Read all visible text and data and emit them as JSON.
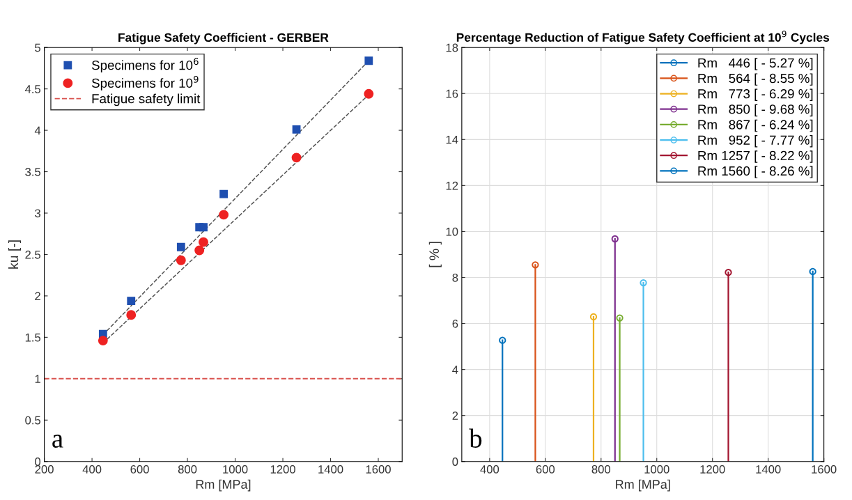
{
  "chart_data": [
    {
      "type": "scatter",
      "title": "Fatigue Safety Coefficient - GERBER",
      "xlabel": "Rm [MPa]",
      "ylabel": "ku [-]",
      "xlim": [
        200,
        1700
      ],
      "xticks": [
        200,
        400,
        600,
        800,
        1000,
        1200,
        1400,
        1600
      ],
      "ylim": [
        0,
        5
      ],
      "yticks": [
        0,
        0.5,
        1,
        1.5,
        2,
        2.5,
        3,
        3.5,
        4,
        4.5,
        5
      ],
      "grid": false,
      "legend": "top left",
      "x": [
        446,
        564,
        773,
        850,
        867,
        952,
        1257,
        1560
      ],
      "series": [
        {
          "name": "Specimens for 10$^{6}$",
          "color": "#1f4fb0",
          "marker": "square",
          "values": [
            1.54,
            1.94,
            2.59,
            2.83,
            2.83,
            3.23,
            4.01,
            4.84
          ]
        },
        {
          "name": "Specimens for 10$^{9}$",
          "color": "#ee2222",
          "marker": "circle",
          "values": [
            1.46,
            1.77,
            2.43,
            2.55,
            2.65,
            2.98,
            3.67,
            4.44
          ]
        },
        {
          "type": "line",
          "color": "#555555",
          "line_style": "dashed",
          "marker": "none",
          "x": [
            446,
            1560
          ],
          "values": [
            1.53,
            4.84
          ]
        },
        {
          "type": "line",
          "color": "#555555",
          "line_style": "dashed",
          "marker": "none",
          "x": [
            446,
            1560
          ],
          "values": [
            1.43,
            4.43
          ]
        }
      ],
      "ref_lines": [
        {
          "axis": "y",
          "value": 1,
          "label": "Fatigue safety limit",
          "color": "#d9534f",
          "line_style": "dashed"
        }
      ],
      "annotations": [
        "a"
      ]
    },
    {
      "type": "lollipop",
      "title": "Percentage Reduction of Fatigue Safety Coefficient at 10$^{9}$ Cycles",
      "xlabel": "Rm [MPa]",
      "ylabel": "[ % ]",
      "xlim": [
        300,
        1600
      ],
      "xticks": [
        400,
        600,
        800,
        1000,
        1200,
        1400,
        1600
      ],
      "ylim": [
        0,
        18
      ],
      "yticks": [
        0,
        2,
        4,
        6,
        8,
        10,
        12,
        14,
        16,
        18
      ],
      "grid": true,
      "legend": "top right",
      "marker": "circle",
      "series": [
        {
          "name": "Rm   446 [ - 5.27 %]",
          "color": "#0072bd",
          "x": [
            446
          ],
          "values": [
            5.27
          ]
        },
        {
          "name": "Rm   564 [ - 8.55 %]",
          "color": "#d95319",
          "x": [
            564
          ],
          "values": [
            8.55
          ]
        },
        {
          "name": "Rm   773 [ - 6.29 %]",
          "color": "#edb120",
          "x": [
            773
          ],
          "values": [
            6.29
          ]
        },
        {
          "name": "Rm   850 [ - 9.68 %]",
          "color": "#7e2f8e",
          "x": [
            850
          ],
          "values": [
            9.68
          ]
        },
        {
          "name": "Rm   867 [ - 6.24 %]",
          "color": "#77ac30",
          "x": [
            867
          ],
          "values": [
            6.24
          ]
        },
        {
          "name": "Rm   952 [ - 7.77 %]",
          "color": "#4dbeee",
          "x": [
            952
          ],
          "values": [
            7.77
          ]
        },
        {
          "name": "Rm 1257 [ - 8.22 %]",
          "color": "#a2142f",
          "x": [
            1257
          ],
          "values": [
            8.22
          ]
        },
        {
          "name": "Rm 1560 [ - 8.26 %]",
          "color": "#0072bd",
          "x": [
            1560
          ],
          "values": [
            8.26
          ]
        }
      ],
      "annotations": [
        "b"
      ]
    }
  ]
}
